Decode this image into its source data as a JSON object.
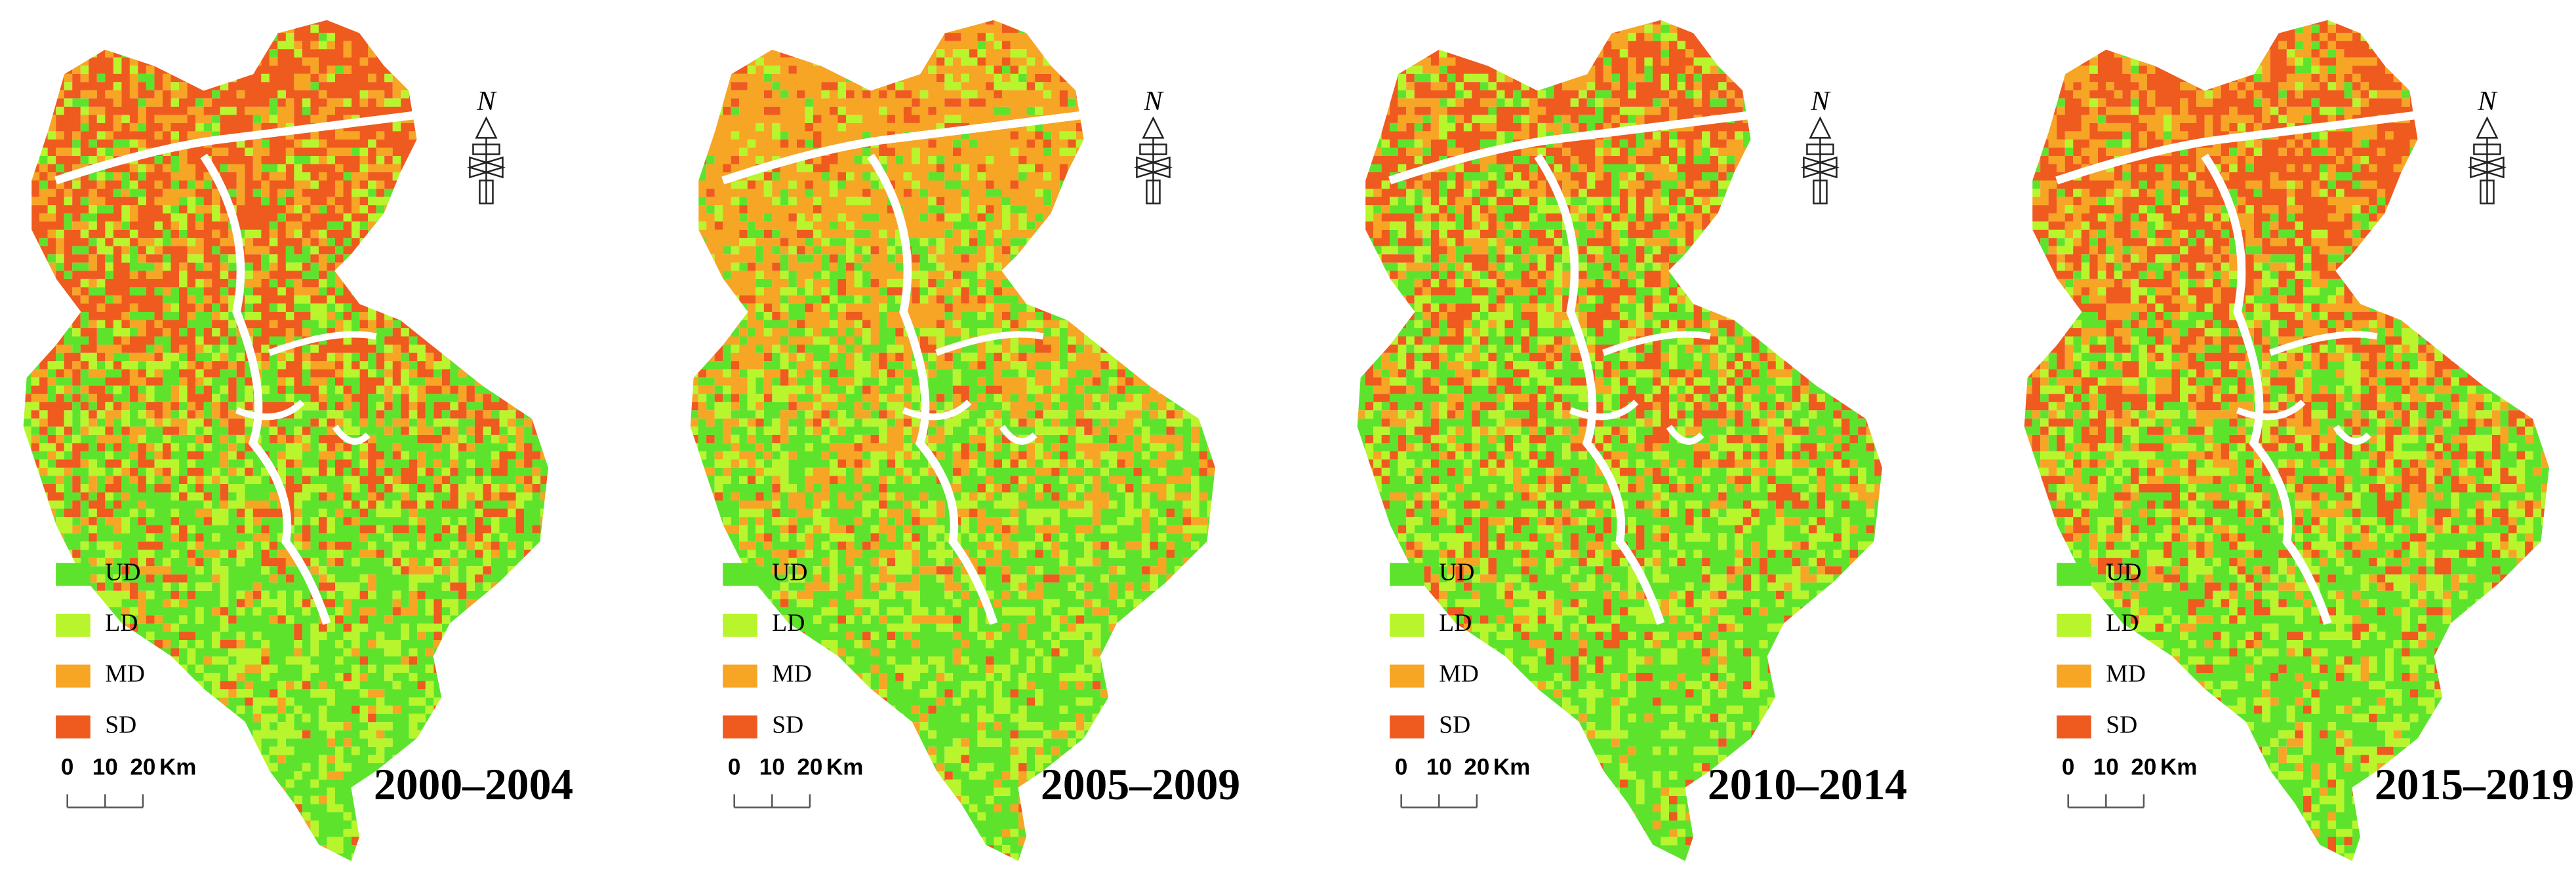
{
  "legend": [
    {
      "label": "UD",
      "color": "#5ee32c"
    },
    {
      "label": "LD",
      "color": "#b8f52c"
    },
    {
      "label": "MD",
      "color": "#f6a524"
    },
    {
      "label": "SD",
      "color": "#ef5a1f"
    }
  ],
  "scale": {
    "ticks": [
      "0",
      "10",
      "20"
    ],
    "unit": "Km"
  },
  "north": "N",
  "panels": [
    {
      "period": "2000–2004"
    },
    {
      "period": "2005–2009"
    },
    {
      "period": "2010–2014"
    },
    {
      "period": "2015–2019"
    }
  ]
}
